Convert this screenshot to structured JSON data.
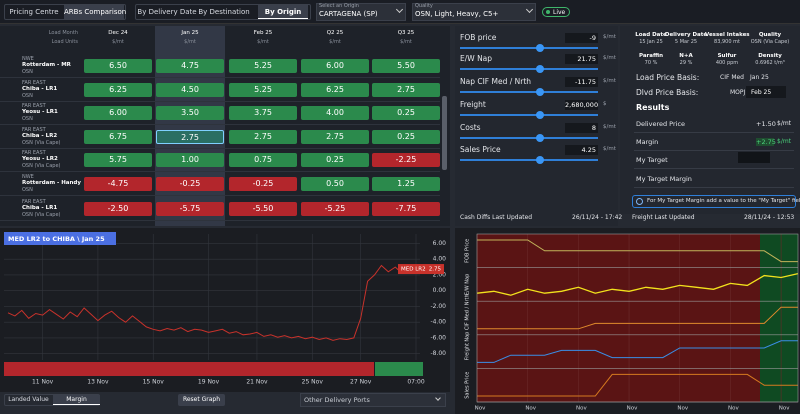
{
  "tabs": {
    "main": [
      "Pricing Centre",
      "ARBs Comparison"
    ],
    "view": [
      "By Delivery Date",
      "By Destination",
      "By Origin"
    ]
  },
  "origin": {
    "label": "Select an Origin",
    "value": "CARTAGENA (SP)"
  },
  "quality": {
    "label": "Quality",
    "value": "OSN, Light, Heavy, C5+"
  },
  "live": "Live",
  "table": {
    "row_headers": [
      "Load Month",
      "Load Units"
    ],
    "columns": [
      {
        "month": "Dec 24",
        "unit": "$/mt"
      },
      {
        "month": "Jan 25",
        "unit": "$/mt"
      },
      {
        "month": "Feb 25",
        "unit": "$/mt"
      },
      {
        "month": "Q2 25",
        "unit": "$/mt"
      },
      {
        "month": "Q3 25",
        "unit": "$/mt"
      }
    ],
    "rows": [
      {
        "region": "NWE",
        "route": "Rotterdam - MR",
        "grade": "OSN",
        "cells": [
          "6.50",
          "4.75",
          "5.25",
          "6.00",
          "5.50"
        ]
      },
      {
        "region": "FAR EAST",
        "route": "Chiba - LR1",
        "grade": "OSN",
        "cells": [
          "6.25",
          "4.50",
          "5.25",
          "6.25",
          "2.75"
        ]
      },
      {
        "region": "FAR EAST",
        "route": "Yeosu - LR1",
        "grade": "OSN",
        "cells": [
          "6.00",
          "3.50",
          "3.75",
          "4.00",
          "0.25"
        ]
      },
      {
        "region": "FAR EAST",
        "route": "Chiba - LR2",
        "grade": "OSN (Via Cape)",
        "cells": [
          "6.75",
          "2.75",
          "2.75",
          "2.75",
          "0.25"
        ]
      },
      {
        "region": "FAR EAST",
        "route": "Yeosu - LR2",
        "grade": "OSN (Via Cape)",
        "cells": [
          "5.75",
          "1.00",
          "0.75",
          "0.25",
          "-2.25"
        ]
      },
      {
        "region": "NWE",
        "route": "Rotterdam - Handy",
        "grade": "OSN",
        "cells": [
          "-4.75",
          "-0.25",
          "-0.25",
          "0.50",
          "1.25"
        ]
      },
      {
        "region": "FAR EAST",
        "route": "Chiba - LR1",
        "grade": "OSN (Via Cape)",
        "cells": [
          "-2.50",
          "-5.75",
          "-5.50",
          "-5.25",
          "-7.75"
        ]
      }
    ]
  },
  "inputs": [
    {
      "label": "FOB price",
      "value": "-9",
      "unit": "$/mt"
    },
    {
      "label": "E/W Nap",
      "value": "21.75",
      "unit": "$/mt"
    },
    {
      "label": "Nap CIF Med / Nrth",
      "value": "-11.75",
      "unit": "$/mt"
    },
    {
      "label": "Freight",
      "value": "2,680,000",
      "unit": "$"
    },
    {
      "label": "Costs",
      "value": "8",
      "unit": "$/mt"
    },
    {
      "label": "Sales Price",
      "value": "4.25",
      "unit": "$/mt"
    }
  ],
  "details": [
    {
      "label": "Load Date",
      "value": "15 Jan 25"
    },
    {
      "label": "Delivery Date",
      "value": "5 Mar 25"
    },
    {
      "label": "Vessel Intakes",
      "value": "83,900 mt"
    },
    {
      "label": "Quality",
      "value": "OSN (Via Cape)"
    },
    {
      "label": "Paraffin",
      "value": "70 %"
    },
    {
      "label": "N+A",
      "value": "29 %"
    },
    {
      "label": "Sulfur",
      "value": "400 ppm"
    },
    {
      "label": "Density",
      "value": "0.6962 t/m³"
    }
  ],
  "basis": [
    {
      "label": "Load Price Basis:",
      "source": "CIF Med",
      "month": "Jan 25"
    },
    {
      "label": "Dlvd Price Basis:",
      "source": "MOPJ",
      "month": "Feb 25"
    }
  ],
  "results": {
    "title": "Results",
    "rows": [
      {
        "label": "Delivered Price",
        "value": "+1.50",
        "unit": "$/mt"
      },
      {
        "label": "Margin",
        "value": "+2.75",
        "unit": "$/mt"
      },
      {
        "label": "My Target"
      },
      {
        "label": "My Target Margin"
      }
    ],
    "note": "For My Target Margin add a value to the \"My Target\" field"
  },
  "updates": [
    {
      "label": "Cash Diffs Last Updated",
      "value": "26/11/24 - 17:42"
    },
    {
      "label": "Freight Last Updated",
      "value": "28/11/24 - 12:53"
    }
  ],
  "chart_data": [
    {
      "type": "line",
      "title": "MED LR2 to CHIBA \\ Jan 25",
      "grid": true,
      "series": [
        {
          "name": "MED LR2",
          "color": "#c8322b",
          "values": [
            -2.8,
            -3.2,
            -2.5,
            -3.5,
            -2.9,
            -3.1,
            -2.4,
            -3.0,
            -3.6,
            -2.7,
            -3.3,
            -2.2,
            -3.0,
            -3.8,
            -3.1,
            -2.6,
            -3.4,
            -4.0,
            -3.2,
            -3.9,
            -4.6,
            -4.9,
            -5.1,
            -4.8,
            -5.0,
            -4.7,
            -5.2,
            -4.9,
            -5.0,
            -5.3,
            -5.1,
            -4.9,
            -5.4,
            -5.2,
            -5.6,
            -5.5,
            -5.3,
            -5.8,
            -5.6,
            -5.9,
            -5.7,
            -6.0,
            -5.8,
            -6.1,
            -5.9,
            -6.2,
            -6.0,
            -6.3,
            -6.1,
            -6.2,
            -6.0,
            -3.5,
            1.2,
            2.0,
            3.2,
            2.4,
            3.0,
            2.2,
            2.6,
            2.75
          ]
        }
      ],
      "ylim": [
        -8.8,
        7.2
      ],
      "yticks": [
        {
          "value": 6,
          "label": "6.00"
        },
        {
          "value": 4,
          "label": "4.00"
        },
        {
          "value": 2,
          "label": "2.00"
        },
        {
          "value": 0,
          "label": "0.00"
        },
        {
          "value": -2,
          "label": "-2.00"
        },
        {
          "value": -4,
          "label": "-4.00"
        },
        {
          "value": -6,
          "label": "-6.00"
        },
        {
          "value": -8,
          "label": "-8.00"
        }
      ],
      "xticks": [
        {
          "value": 5,
          "label": "11 Nov"
        },
        {
          "value": 13,
          "label": "13 Nov"
        },
        {
          "value": 21,
          "label": "15 Nov"
        },
        {
          "value": 29,
          "label": "19 Nov"
        },
        {
          "value": 36,
          "label": "21 Nov"
        },
        {
          "value": 44,
          "label": "25 Nov"
        },
        {
          "value": 51,
          "label": "27 Nov"
        },
        {
          "value": 59,
          "label": "07:00"
        }
      ]
    },
    {
      "type": "panels",
      "series": [
        {
          "name": "FOB Price",
          "color": "#c2b35a",
          "values": [
            5,
            5,
            5,
            5,
            4,
            4,
            4,
            4,
            4,
            4,
            4,
            4,
            4,
            4,
            4,
            4,
            4,
            4,
            3,
            3
          ]
        },
        {
          "name": "E/W Nap",
          "color": "#f2e21c",
          "values": [
            2,
            2.1,
            1.9,
            2.2,
            2.0,
            2.1,
            2.3,
            2.0,
            2.2,
            2.1,
            2.3,
            2.2,
            2.4,
            2.3,
            2.2,
            2.5,
            2.4,
            2.9,
            2.8,
            3.0
          ]
        },
        {
          "name": "Nap CIF Med / Nrth",
          "color": "#e08a2c",
          "values": [
            3,
            3,
            3,
            3,
            3,
            3,
            3,
            3.2,
            3.2,
            3.2,
            3.2,
            3.2,
            3.2,
            3.2,
            3.2,
            3.2,
            3.2,
            3.2,
            3.8,
            3.8
          ]
        },
        {
          "name": "Freight",
          "color": "#3a8ee6",
          "values": [
            2,
            2,
            2.3,
            2.3,
            2.3,
            2.5,
            2.5,
            2.5,
            2.2,
            2.2,
            2.2,
            2.2,
            2.6,
            2.6,
            2.6,
            2.6,
            2.6,
            2.6,
            2.9,
            2.9
          ]
        },
        {
          "name": "Sales Price",
          "color": "#d67a1f",
          "values": [
            3,
            3,
            3,
            3,
            3,
            3,
            3,
            3,
            3.2,
            3.2,
            3.2,
            3.2,
            3.2,
            3.2,
            3.2,
            3.2,
            3.2,
            3.1,
            3.1,
            3.1
          ]
        }
      ],
      "xticks": [
        {
          "value": 0,
          "label": "Nov"
        },
        {
          "value": 3,
          "label": "Nov"
        },
        {
          "value": 6,
          "label": "Nov"
        },
        {
          "value": 9,
          "label": "Nov"
        },
        {
          "value": 12,
          "label": "Nov"
        },
        {
          "value": 15,
          "label": "Nov"
        },
        {
          "value": 18,
          "label": "Nov"
        }
      ]
    }
  ],
  "footer": {
    "toggle": [
      "Landed Value",
      "Margin"
    ],
    "reset": "Reset Graph",
    "ports": "Other Delivery Ports"
  }
}
